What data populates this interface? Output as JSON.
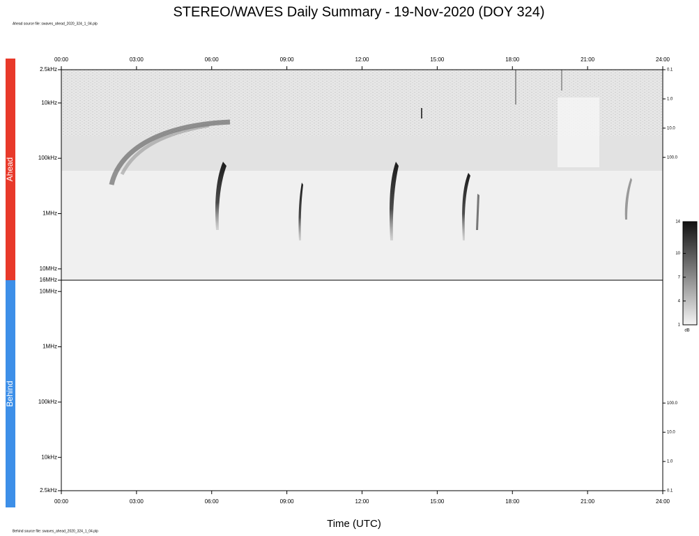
{
  "title": "STEREO/WAVES Daily Summary - 19-Nov-2020 (DOY 324)",
  "ahead_source": "Ahead source file: swaves_ahead_2020_324_1_04.plp",
  "behind_source": "Behind source file: swaves_ahead_2020_324_1_04.plp",
  "x_label": "Time (UTC)",
  "colorbar": {
    "ticks": [
      1,
      4,
      7,
      10,
      14
    ],
    "lim": [
      1,
      14
    ],
    "label": "dB"
  },
  "chart_data": [
    {
      "type": "spectrogram",
      "name": "Ahead",
      "color": "#e8392a",
      "log_y": true,
      "y_inverted": true,
      "x_axis_position": "top",
      "xlim": [
        0,
        24
      ],
      "xticks": [
        {
          "value": 0,
          "label": "00:00"
        },
        {
          "value": 3,
          "label": "03:00"
        },
        {
          "value": 6,
          "label": "06:00"
        },
        {
          "value": 9,
          "label": "09:00"
        },
        {
          "value": 12,
          "label": "12:00"
        },
        {
          "value": 15,
          "label": "15:00"
        },
        {
          "value": 18,
          "label": "18:00"
        },
        {
          "value": 21,
          "label": "21:00"
        },
        {
          "value": 24,
          "label": "24:00"
        }
      ],
      "ylim": [
        2.5,
        16000
      ],
      "yticks": [
        {
          "value": 2.5,
          "label": "2.5kHz"
        },
        {
          "value": 10,
          "label": "10kHz"
        },
        {
          "value": 100,
          "label": "100kHz"
        },
        {
          "value": 1000,
          "label": "1MHz"
        },
        {
          "value": 10000,
          "label": "10MHz"
        },
        {
          "value": 16000,
          "label": "16MHz"
        }
      ],
      "y2lim": [
        0.1,
        1600000
      ],
      "y2ticks": [
        0.1,
        {
          "value": 1,
          "label": "1.0"
        },
        {
          "value": 10,
          "label": "10.0"
        },
        {
          "value": 100,
          "label": "100.0"
        }
      ]
    },
    {
      "type": "spectrogram",
      "name": "Behind",
      "color": "#3d8fe8",
      "log_y": true,
      "y_inverted": false,
      "x_axis_position": "bottom",
      "xlim": [
        0,
        24
      ],
      "xticks": [
        {
          "value": 0,
          "label": "00:00"
        },
        {
          "value": 3,
          "label": "03:00"
        },
        {
          "value": 6,
          "label": "06:00"
        },
        {
          "value": 9,
          "label": "09:00"
        },
        {
          "value": 12,
          "label": "12:00"
        },
        {
          "value": 15,
          "label": "15:00"
        },
        {
          "value": 18,
          "label": "18:00"
        },
        {
          "value": 21,
          "label": "21:00"
        },
        {
          "value": 24,
          "label": "24:00"
        }
      ],
      "ylim": [
        2.5,
        16000
      ],
      "yticks": [
        {
          "value": 2.5,
          "label": "2.5kHz"
        },
        {
          "value": 10,
          "label": "10kHz"
        },
        {
          "value": 100,
          "label": "100kHz"
        },
        {
          "value": 1000,
          "label": "1MHz"
        },
        {
          "value": 10000,
          "label": "10MHz"
        }
      ],
      "y2lim": [
        0.1,
        1600000
      ],
      "y2ticks": [
        0.1,
        {
          "value": 1,
          "label": "1.0"
        },
        {
          "value": 10,
          "label": "10.0"
        },
        {
          "value": 100,
          "label": "100.0"
        }
      ]
    }
  ]
}
